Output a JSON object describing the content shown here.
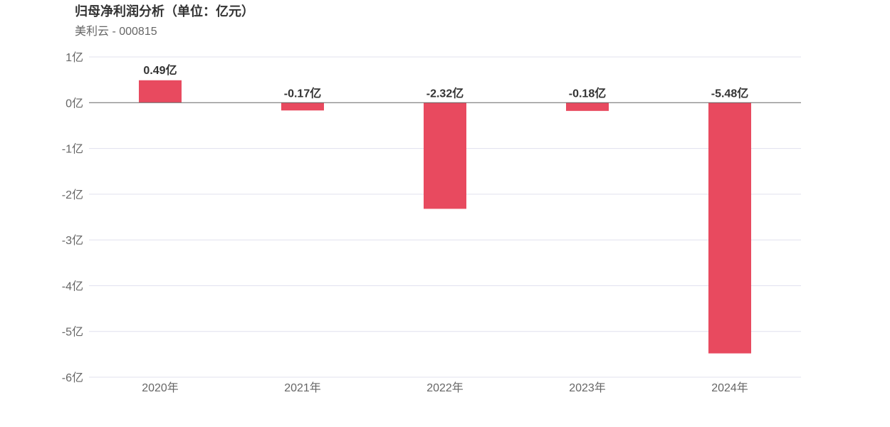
{
  "header": {
    "title": "归母净利润分析（单位：亿元）",
    "subtitle": "美利云 - 000815"
  },
  "chart_data": {
    "type": "bar",
    "title": "归母净利润分析（单位：亿元）",
    "subtitle": "美利云 - 000815",
    "categories": [
      "2020年",
      "2021年",
      "2022年",
      "2023年",
      "2024年"
    ],
    "values": [
      0.49,
      -0.17,
      -2.32,
      -0.18,
      -5.48
    ],
    "data_labels": [
      "0.49亿",
      "-0.17亿",
      "-2.32亿",
      "-0.18亿",
      "-5.48亿"
    ],
    "ylim": [
      -6,
      1
    ],
    "yticks": [
      1,
      0,
      -1,
      -2,
      -3,
      -4,
      -5,
      -6
    ],
    "ytick_labels": [
      "1亿",
      "0亿",
      "-1亿",
      "-2亿",
      "-3亿",
      "-4亿",
      "-5亿",
      "-6亿"
    ],
    "xlabel": "",
    "ylabel": "",
    "grid": true,
    "legend": "none",
    "bar_color": "#e84a5f",
    "grid_color": "#e0e0ee",
    "zero_line_color": "#666666"
  }
}
